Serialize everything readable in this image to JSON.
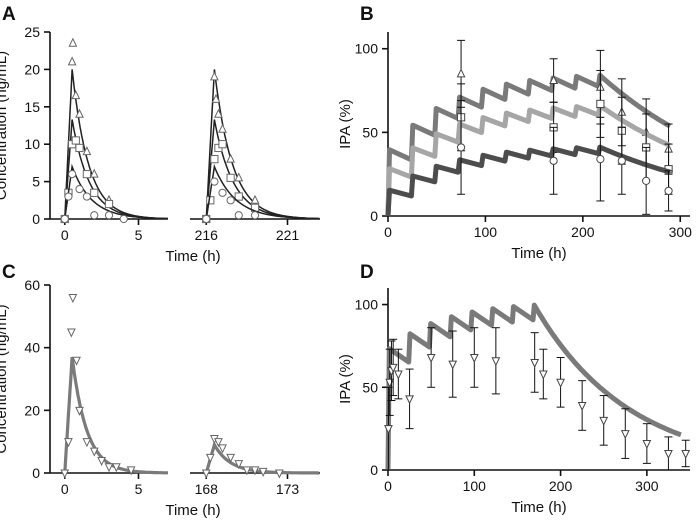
{
  "figure": {
    "panels": [
      {
        "id": "A",
        "letter": "A"
      },
      {
        "id": "B",
        "letter": "B"
      },
      {
        "id": "C",
        "letter": "C"
      },
      {
        "id": "D",
        "letter": "D"
      }
    ]
  },
  "chart_data": [
    {
      "panel": "A",
      "type": "line",
      "title": "",
      "xlabel": "Time (h)",
      "ylabel": "Concentration (ng/mL)",
      "ylim": [
        0,
        25
      ],
      "yticks": [
        0,
        5,
        10,
        15,
        20,
        25
      ],
      "broken_x_axis": true,
      "segments": [
        {
          "xlim": [
            -1,
            7
          ],
          "xticks": [
            0,
            5
          ]
        },
        {
          "xlim": [
            215,
            223
          ],
          "xticks": [
            216,
            221
          ]
        }
      ],
      "line_color": "#222222",
      "series": [
        {
          "name": "triangle",
          "marker": "triangle-up",
          "observed": [
            [
              0,
              0
            ],
            [
              0.5,
              21
            ],
            [
              0.55,
              23.5
            ],
            [
              0.75,
              16.5
            ],
            [
              1,
              14
            ],
            [
              1.5,
              9
            ],
            [
              2,
              6
            ],
            [
              3,
              2.5
            ],
            [
              216,
              0
            ],
            [
              216.5,
              19
            ],
            [
              216.6,
              16
            ],
            [
              216.75,
              14
            ],
            [
              217,
              12
            ],
            [
              217.5,
              8
            ],
            [
              218,
              5.5
            ],
            [
              219,
              2.5
            ]
          ],
          "curve_peak": 20,
          "curve_tmax": 0.5,
          "curve_ke": 0.9
        },
        {
          "name": "square",
          "marker": "square",
          "observed": [
            [
              0,
              0
            ],
            [
              0.25,
              3.5
            ],
            [
              0.5,
              10
            ],
            [
              0.75,
              10.5
            ],
            [
              1,
              9.5
            ],
            [
              1.5,
              6
            ],
            [
              2,
              3.5
            ],
            [
              3,
              2
            ],
            [
              216,
              0
            ],
            [
              216.25,
              2.5
            ],
            [
              216.5,
              8
            ],
            [
              216.75,
              9.5
            ],
            [
              217,
              10
            ],
            [
              217.5,
              5.5
            ],
            [
              218,
              3
            ],
            [
              219,
              1.5
            ]
          ],
          "curve_peak": 13.3,
          "curve_tmax": 0.5,
          "curve_ke": 0.85
        },
        {
          "name": "circle",
          "marker": "circle",
          "observed": [
            [
              0,
              0
            ],
            [
              0.25,
              3
            ],
            [
              0.5,
              6
            ],
            [
              1,
              4
            ],
            [
              1.5,
              3
            ],
            [
              2,
              0.5
            ],
            [
              3,
              0.5
            ],
            [
              4,
              0
            ],
            [
              216,
              0
            ],
            [
              216.5,
              5
            ],
            [
              217,
              3.5
            ],
            [
              217.5,
              2.5
            ],
            [
              218,
              0.5
            ],
            [
              219,
              0.5
            ]
          ],
          "curve_peak": 7,
          "curve_tmax": 0.5,
          "curve_ke": 0.75
        }
      ]
    },
    {
      "panel": "B",
      "type": "line",
      "title": "",
      "xlabel": "Time (h)",
      "ylabel": "IPA (%)",
      "xlim": [
        0,
        310
      ],
      "ylim": [
        0,
        110
      ],
      "xticks": [
        0,
        100,
        200,
        300
      ],
      "yticks": [
        0,
        50,
        100
      ],
      "dose_interval": 24,
      "last_dose": 216,
      "series": [
        {
          "name": "high",
          "color": "#7a7a7a",
          "base": 18,
          "step": 13,
          "drop": 6,
          "obs_marker": "triangle-up",
          "observed": [
            [
              75,
              85,
              20
            ],
            [
              170,
              81,
              13
            ],
            [
              218,
              77,
              22
            ],
            [
              240,
              62,
              20
            ],
            [
              265,
              50,
              20
            ],
            [
              288,
              40,
              15
            ]
          ]
        },
        {
          "name": "mid",
          "color": "#a6a6a6",
          "base": 10,
          "step": 11,
          "drop": 5,
          "obs_marker": "square",
          "observed": [
            [
              75,
              59,
              20
            ],
            [
              170,
              53,
              15
            ],
            [
              218,
              67,
              20
            ],
            [
              240,
              51,
              20
            ],
            [
              265,
              41,
              20
            ],
            [
              288,
              28,
              15
            ]
          ]
        },
        {
          "name": "low",
          "color": "#4d4d4d",
          "base": 3,
          "step": 7.5,
          "drop": 3.5,
          "obs_marker": "circle",
          "observed": [
            [
              75,
              41,
              28
            ],
            [
              170,
              33,
              20
            ],
            [
              218,
              34,
              25
            ],
            [
              240,
              33,
              20
            ],
            [
              265,
              21,
              20
            ],
            [
              288,
              15,
              12
            ]
          ]
        }
      ]
    },
    {
      "panel": "C",
      "type": "line",
      "title": "",
      "xlabel": "Time (h)",
      "ylabel": "Concentration (ng/mL)",
      "ylim": [
        0,
        60
      ],
      "yticks": [
        0,
        20,
        40,
        60
      ],
      "broken_x_axis": true,
      "segments": [
        {
          "xlim": [
            -1,
            7
          ],
          "xticks": [
            0,
            5
          ]
        },
        {
          "xlim": [
            167,
            175
          ],
          "xticks": [
            168,
            173
          ]
        }
      ],
      "line_color": "#7a7a7a",
      "series": [
        {
          "name": "triangle-down",
          "marker": "triangle-down",
          "observed": [
            [
              0,
              0
            ],
            [
              0.25,
              10
            ],
            [
              0.45,
              45
            ],
            [
              0.55,
              56
            ],
            [
              0.8,
              36
            ],
            [
              1,
              20
            ],
            [
              1.5,
              10
            ],
            [
              2,
              7
            ],
            [
              2.5,
              4
            ],
            [
              3,
              2
            ],
            [
              3.5,
              2
            ],
            [
              4.5,
              1
            ],
            [
              168,
              0
            ],
            [
              168.25,
              5
            ],
            [
              168.5,
              11
            ],
            [
              168.75,
              10
            ],
            [
              169,
              8
            ],
            [
              169.5,
              5
            ],
            [
              170,
              3
            ],
            [
              170.5,
              1
            ],
            [
              171,
              1
            ],
            [
              171.5,
              0.5
            ],
            [
              172.5,
              0
            ]
          ],
          "segments_fit": [
            {
              "start": 0,
              "peak": 37,
              "tmax": 0.5,
              "ke": 1.0
            },
            {
              "start": 168,
              "peak": 9,
              "tmax": 0.5,
              "ke": 1.0
            }
          ]
        }
      ]
    },
    {
      "panel": "D",
      "type": "line",
      "title": "",
      "xlabel": "Time (h)",
      "ylabel": "IPA (%)",
      "xlim": [
        0,
        350
      ],
      "ylim": [
        0,
        110
      ],
      "xticks": [
        0,
        100,
        200,
        300
      ],
      "yticks": [
        0,
        50,
        100
      ],
      "dose_interval": 24,
      "last_dose": 168,
      "series": [
        {
          "name": "model",
          "color": "#7a7a7a",
          "base": 60,
          "step": 8,
          "drop": 8,
          "obs_marker": "triangle-down",
          "observed": [
            [
              0.5,
              25,
              25
            ],
            [
              2,
              53,
              20
            ],
            [
              4,
              60,
              18
            ],
            [
              6,
              62,
              17
            ],
            [
              12,
              58,
              15
            ],
            [
              25,
              43,
              18
            ],
            [
              50,
              68,
              18
            ],
            [
              75,
              64,
              20
            ],
            [
              100,
              68,
              18
            ],
            [
              125,
              66,
              20
            ],
            [
              170,
              65,
              18
            ],
            [
              180,
              58,
              15
            ],
            [
              200,
              53,
              15
            ],
            [
              225,
              39,
              15
            ],
            [
              250,
              30,
              15
            ],
            [
              275,
              22,
              15
            ],
            [
              300,
              16,
              12
            ],
            [
              325,
              10,
              10
            ],
            [
              345,
              10,
              8
            ]
          ]
        }
      ]
    }
  ]
}
